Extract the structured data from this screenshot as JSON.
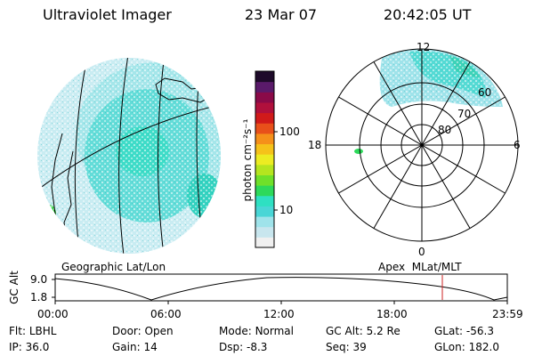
{
  "header": {
    "instrument": "Ultraviolet Imager",
    "date": "23 Mar 07",
    "time": "20:42:05 UT"
  },
  "geo_map": {
    "caption": "Geographic Lat/Lon"
  },
  "colorbar": {
    "unit_label": "photon cm⁻²s⁻¹",
    "tick_labels": [
      "100",
      "10"
    ],
    "colors": [
      "#f0f0f0",
      "#c8e6ee",
      "#9fe3ea",
      "#49d6d6",
      "#2ee0c2",
      "#2dd95a",
      "#6fe02a",
      "#b5e51f",
      "#ecec22",
      "#f5c21a",
      "#f5901a",
      "#e8501a",
      "#d01a1a",
      "#b0103c",
      "#8a0a48",
      "#5a1a6a",
      "#1e0a2a"
    ]
  },
  "polar_plot": {
    "caption": "Apex  MLat/MLT",
    "mlt_labels": {
      "top": "12",
      "left": "18",
      "right": "6",
      "bottom": "0"
    },
    "lat_labels": [
      "60",
      "70",
      "80"
    ]
  },
  "altitude_plot": {
    "axis_label": "GC Alt",
    "y_ticks": [
      "9.0",
      "1.8"
    ],
    "x_ticks": [
      "00:00",
      "06:00",
      "12:00",
      "18:00",
      "23:59"
    ],
    "line_color": "#000000",
    "marker_color": "#cc2222"
  },
  "info": {
    "row1": [
      {
        "label": "Flt:",
        "value": "LBHL"
      },
      {
        "label": "Door:",
        "value": "Open"
      },
      {
        "label": "Mode:",
        "value": "Normal"
      },
      {
        "label": "GC Alt:",
        "value": "5.2 Re"
      },
      {
        "label": "GLat:",
        "value": "-56.3"
      }
    ],
    "row2": [
      {
        "label": "IP:",
        "value": "36.0"
      },
      {
        "label": "Gain:",
        "value": "14"
      },
      {
        "label": "Dsp:",
        "value": "-8.3"
      },
      {
        "label": "Seq:",
        "value": "39"
      },
      {
        "label": "GLon:",
        "value": "182.0"
      }
    ]
  }
}
